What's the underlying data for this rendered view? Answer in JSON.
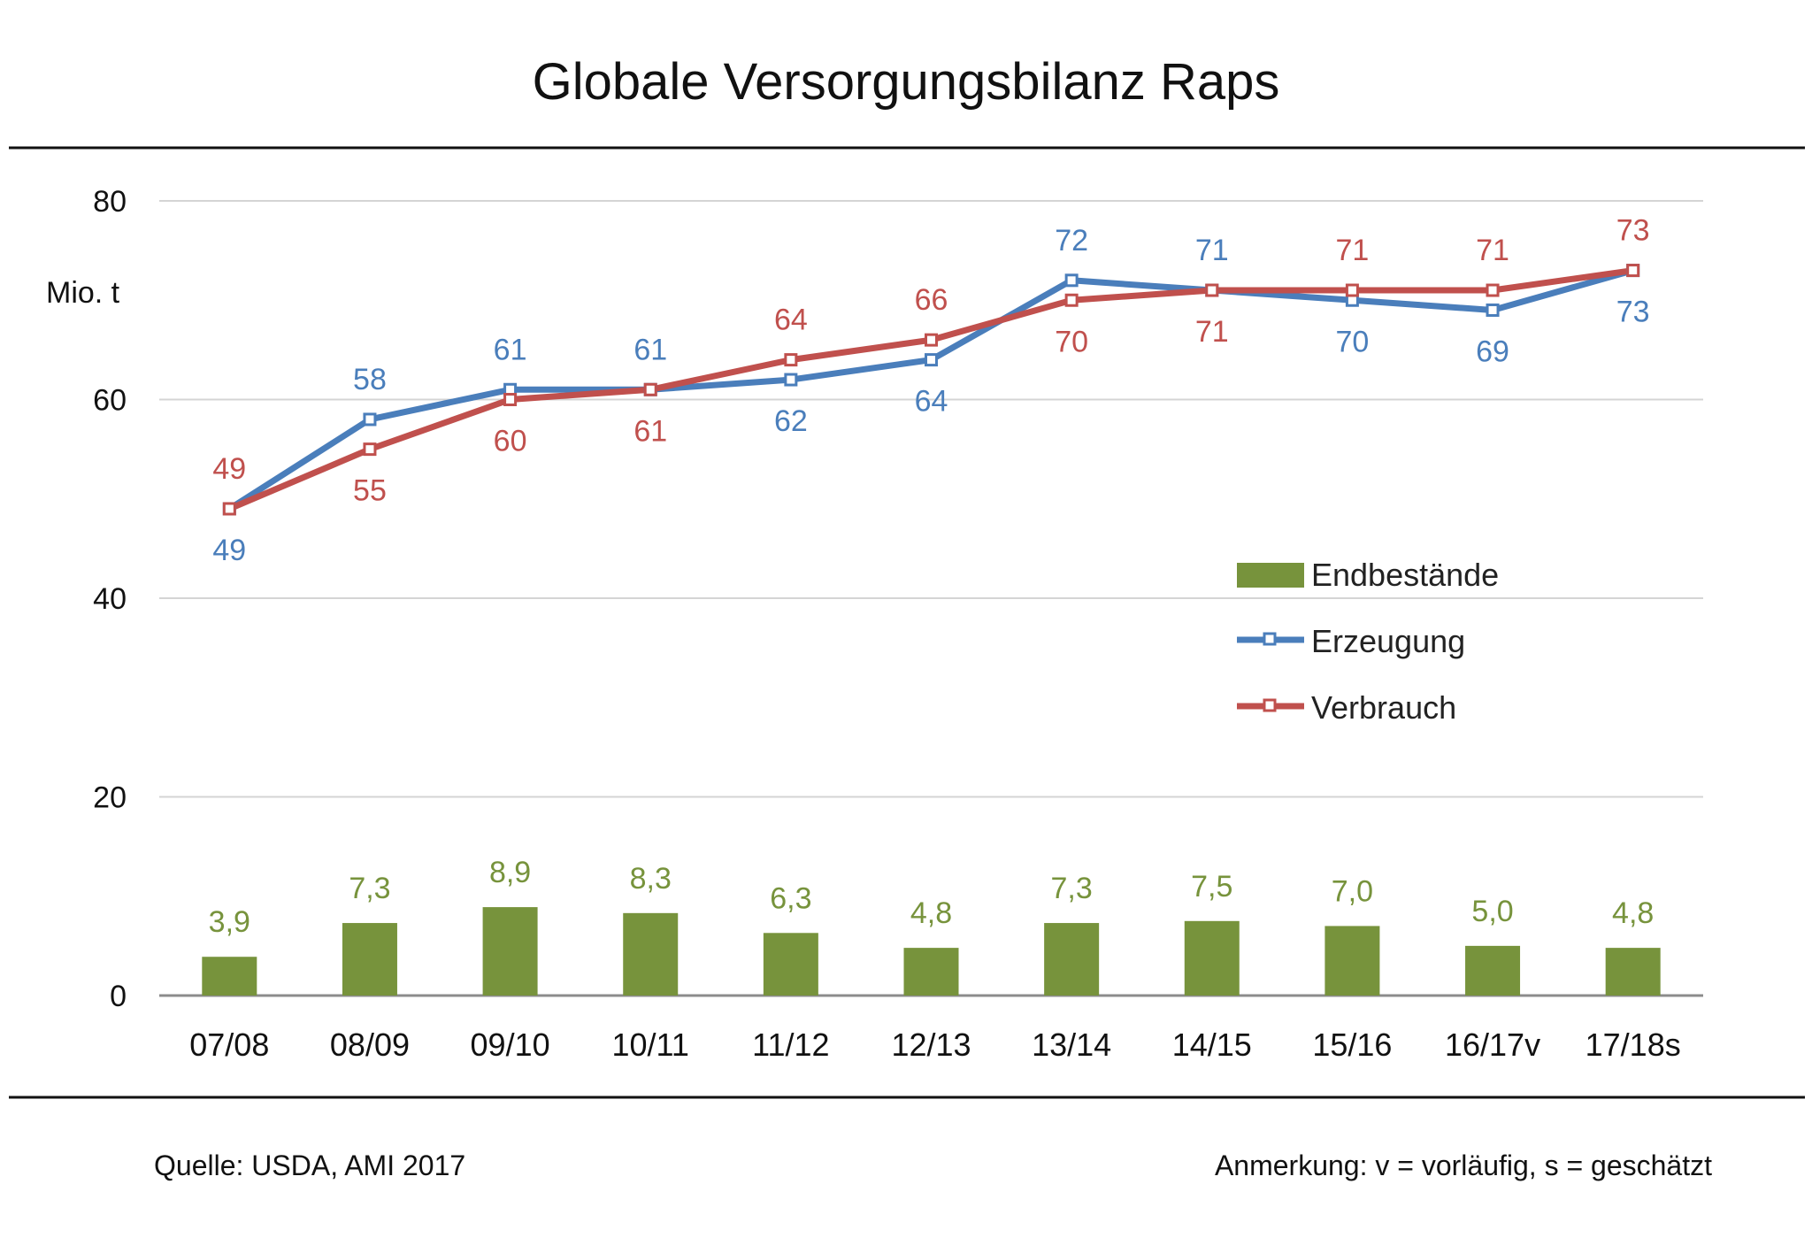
{
  "chart_data": {
    "type": "bar+line",
    "title": "Globale Versorgungsbilanz Raps",
    "ylabel": "Mio. t",
    "ylim": [
      0,
      80
    ],
    "yticks": [
      "0",
      "20",
      "40",
      "60",
      "80"
    ],
    "grid": true,
    "legend_position": "right-center",
    "categories": [
      "07/08",
      "08/09",
      "09/10",
      "10/11",
      "11/12",
      "12/13",
      "13/14",
      "14/15",
      "15/16",
      "16/17v",
      "17/18s"
    ],
    "series": [
      {
        "name": "Endbestände",
        "type": "bar",
        "color": "#77933c",
        "values": [
          3.9,
          7.3,
          8.9,
          8.3,
          6.3,
          4.8,
          7.3,
          7.5,
          7.0,
          5.0,
          4.8
        ],
        "labels": [
          "3,9",
          "7,3",
          "8,9",
          "8,3",
          "6,3",
          "4,8",
          "7,3",
          "7,5",
          "7,0",
          "5,0",
          "4,8"
        ]
      },
      {
        "name": "Erzeugung",
        "type": "line",
        "color": "#4a7ebb",
        "values": [
          49,
          58,
          61,
          61,
          62,
          64,
          72,
          71,
          70,
          69,
          73
        ],
        "labels": [
          "49",
          "58",
          "61",
          "61",
          "62",
          "64",
          "72",
          "71",
          "70",
          "69",
          "73"
        ]
      },
      {
        "name": "Verbrauch",
        "type": "line",
        "color": "#c0504d",
        "values": [
          49,
          55,
          60,
          61,
          64,
          66,
          70,
          71,
          71,
          71,
          73
        ],
        "labels": [
          "49",
          "55",
          "60",
          "61",
          "64",
          "66",
          "70",
          "71",
          "71",
          "71",
          "73"
        ]
      }
    ]
  },
  "footer": {
    "source": "Quelle:  USDA, AMI 2017",
    "note": "Anmerkung: v = vorläufig, s = geschätzt"
  }
}
